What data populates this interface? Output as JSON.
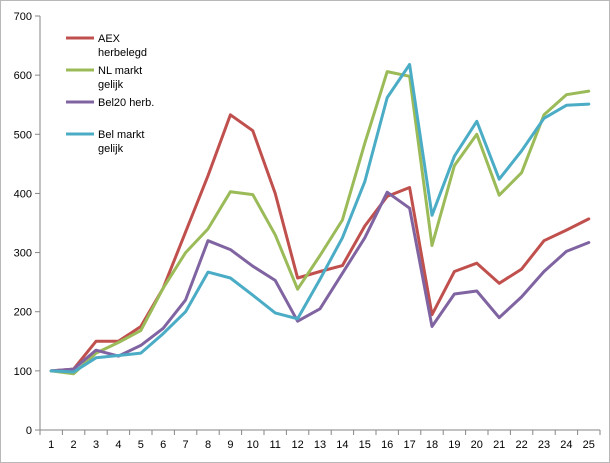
{
  "chart_data": {
    "type": "line",
    "title": "",
    "xlabel": "",
    "ylabel": "",
    "categories": [
      "1",
      "2",
      "3",
      "4",
      "5",
      "6",
      "7",
      "8",
      "9",
      "10",
      "11",
      "12",
      "13",
      "14",
      "15",
      "16",
      "17",
      "18",
      "19",
      "20",
      "21",
      "22",
      "23",
      "24",
      "25"
    ],
    "ylim": [
      0,
      700
    ],
    "yticks": [
      0,
      100,
      200,
      300,
      400,
      500,
      600,
      700
    ],
    "grid": false,
    "legend_placement": "top-left",
    "series": [
      {
        "name": "AEX herbelegd",
        "legend_lines": [
          "AEX",
          "herbelegd"
        ],
        "color": "#c0504d",
        "values": [
          100,
          103,
          150,
          150,
          175,
          240,
          335,
          430,
          533,
          506,
          400,
          257,
          268,
          278,
          345,
          395,
          410,
          195,
          268,
          282,
          248,
          272,
          320,
          338,
          357
        ]
      },
      {
        "name": "NL markt gelijk",
        "legend_lines": [
          "NL markt",
          "gelijk"
        ],
        "color": "#9bbb59",
        "values": [
          100,
          95,
          130,
          148,
          168,
          240,
          300,
          340,
          403,
          398,
          330,
          238,
          295,
          355,
          485,
          606,
          598,
          312,
          447,
          500,
          397,
          435,
          533,
          567,
          573
        ]
      },
      {
        "name": "Bel20 herb.",
        "legend_lines": [
          "Bel20 herb."
        ],
        "color": "#8064a2",
        "values": [
          100,
          103,
          135,
          125,
          143,
          172,
          220,
          320,
          305,
          277,
          253,
          184,
          205,
          265,
          325,
          402,
          375,
          175,
          230,
          235,
          190,
          225,
          268,
          302,
          317
        ]
      },
      {
        "name": "Bel markt gelijk",
        "legend_lines": [
          "Bel markt",
          "gelijk"
        ],
        "color": "#4bacc6",
        "values": [
          100,
          98,
          122,
          126,
          130,
          163,
          200,
          267,
          257,
          228,
          198,
          188,
          255,
          325,
          420,
          562,
          618,
          363,
          463,
          522,
          424,
          472,
          527,
          549,
          551
        ]
      }
    ]
  }
}
